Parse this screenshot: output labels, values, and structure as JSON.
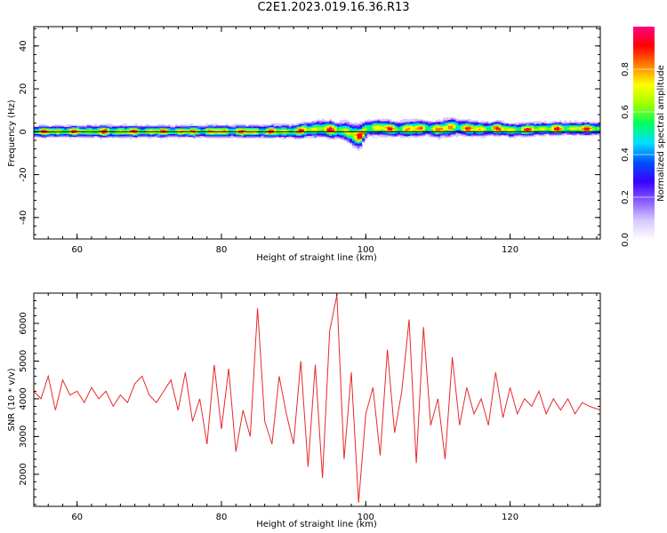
{
  "title": "C2E1.2023.019.16.36.R13",
  "colors": {
    "series_line": "#e8282a",
    "line_overlay": "#000000",
    "colormap": [
      "#ffffff",
      "#d8c8ff",
      "#8a5cff",
      "#3a00ff",
      "#0050ff",
      "#00e0ff",
      "#00ff60",
      "#a0ff00",
      "#ffff00",
      "#ff8000",
      "#ff0000",
      "#ff0080"
    ]
  },
  "chart_data": [
    {
      "type": "heatmap",
      "title": "",
      "xlabel": "Height of straight line (km)",
      "ylabel": "Frequency (Hz)",
      "xlim": [
        54,
        132.5
      ],
      "ylim": [
        -50,
        49
      ],
      "xticks": [
        60,
        80,
        100,
        120
      ],
      "yticks": [
        -40,
        -20,
        0,
        20,
        40
      ],
      "colorbar": {
        "label": "Normalized spectral amplitude",
        "range": [
          0,
          1
        ],
        "ticks": [
          0.0,
          0.2,
          0.4,
          0.6,
          0.8
        ]
      },
      "ridge": {
        "description_hint": "amplitude concentrated near 0 Hz",
        "x": [
          54,
          58,
          62,
          66,
          70,
          74,
          78,
          82,
          86,
          90,
          92,
          94,
          96,
          97,
          98,
          99,
          100,
          102,
          104,
          106,
          108,
          110,
          112,
          114,
          116,
          118,
          120,
          124,
          128,
          132.5
        ],
        "center": [
          0,
          0,
          0,
          0,
          0,
          0,
          0,
          0,
          0,
          0,
          0.8,
          1.2,
          0.5,
          0.3,
          -1.5,
          -2.5,
          1.5,
          1.8,
          1.0,
          1.2,
          1.6,
          1.0,
          2.2,
          1.4,
          1.0,
          1.5,
          0.6,
          1.2,
          1.4,
          1.2
        ],
        "halfwidth": [
          3,
          3,
          3.2,
          3.2,
          3,
          3,
          3.2,
          3.2,
          3.3,
          3.5,
          4,
          4.5,
          4.3,
          4.8,
          6,
          6,
          4.5,
          4,
          4,
          4.3,
          4,
          4.2,
          4.6,
          4,
          3.8,
          3.6,
          3.6,
          3.4,
          3.4,
          3.3
        ]
      }
    },
    {
      "type": "line",
      "title": "",
      "xlabel": "Height of straight line (km)",
      "ylabel": "SNR (10 * v/v)",
      "xlim": [
        54,
        132.5
      ],
      "ylim": [
        1150,
        6800
      ],
      "xticks": [
        60,
        80,
        100,
        120
      ],
      "yticks": [
        2000,
        3000,
        4000,
        5000,
        6000
      ],
      "series": [
        {
          "x": [
            54,
            55,
            56,
            57,
            58,
            59,
            60,
            61,
            62,
            63,
            64,
            65,
            66,
            67,
            68,
            69,
            70,
            71,
            72,
            73,
            74,
            75,
            76,
            77,
            78,
            79,
            80,
            81,
            82,
            83,
            84,
            85,
            86,
            87,
            88,
            89,
            90,
            91,
            92,
            93,
            94,
            95,
            96,
            97,
            98,
            99,
            100,
            101,
            102,
            103,
            104,
            105,
            106,
            107,
            108,
            109,
            110,
            111,
            112,
            113,
            114,
            115,
            116,
            117,
            118,
            119,
            120,
            121,
            122,
            123,
            124,
            125,
            126,
            127,
            128,
            129,
            130,
            131,
            132.5
          ],
          "y": [
            4200,
            4000,
            4600,
            3700,
            4500,
            4100,
            4200,
            3900,
            4300,
            4000,
            4200,
            3800,
            4100,
            3900,
            4400,
            4600,
            4100,
            3900,
            4200,
            4500,
            3700,
            4700,
            3400,
            4000,
            2800,
            4900,
            3200,
            4800,
            2600,
            3700,
            3000,
            6400,
            3400,
            2800,
            4600,
            3600,
            2800,
            5000,
            2200,
            4900,
            1900,
            5800,
            6750,
            2400,
            4700,
            1250,
            3600,
            4300,
            2500,
            5300,
            3100,
            4200,
            6100,
            2300,
            5900,
            3300,
            4000,
            2400,
            5100,
            3300,
            4300,
            3600,
            4000,
            3300,
            4700,
            3500,
            4300,
            3600,
            4000,
            3800,
            4200,
            3600,
            4000,
            3700,
            4000,
            3600,
            3900,
            3800,
            3700
          ]
        }
      ]
    }
  ]
}
